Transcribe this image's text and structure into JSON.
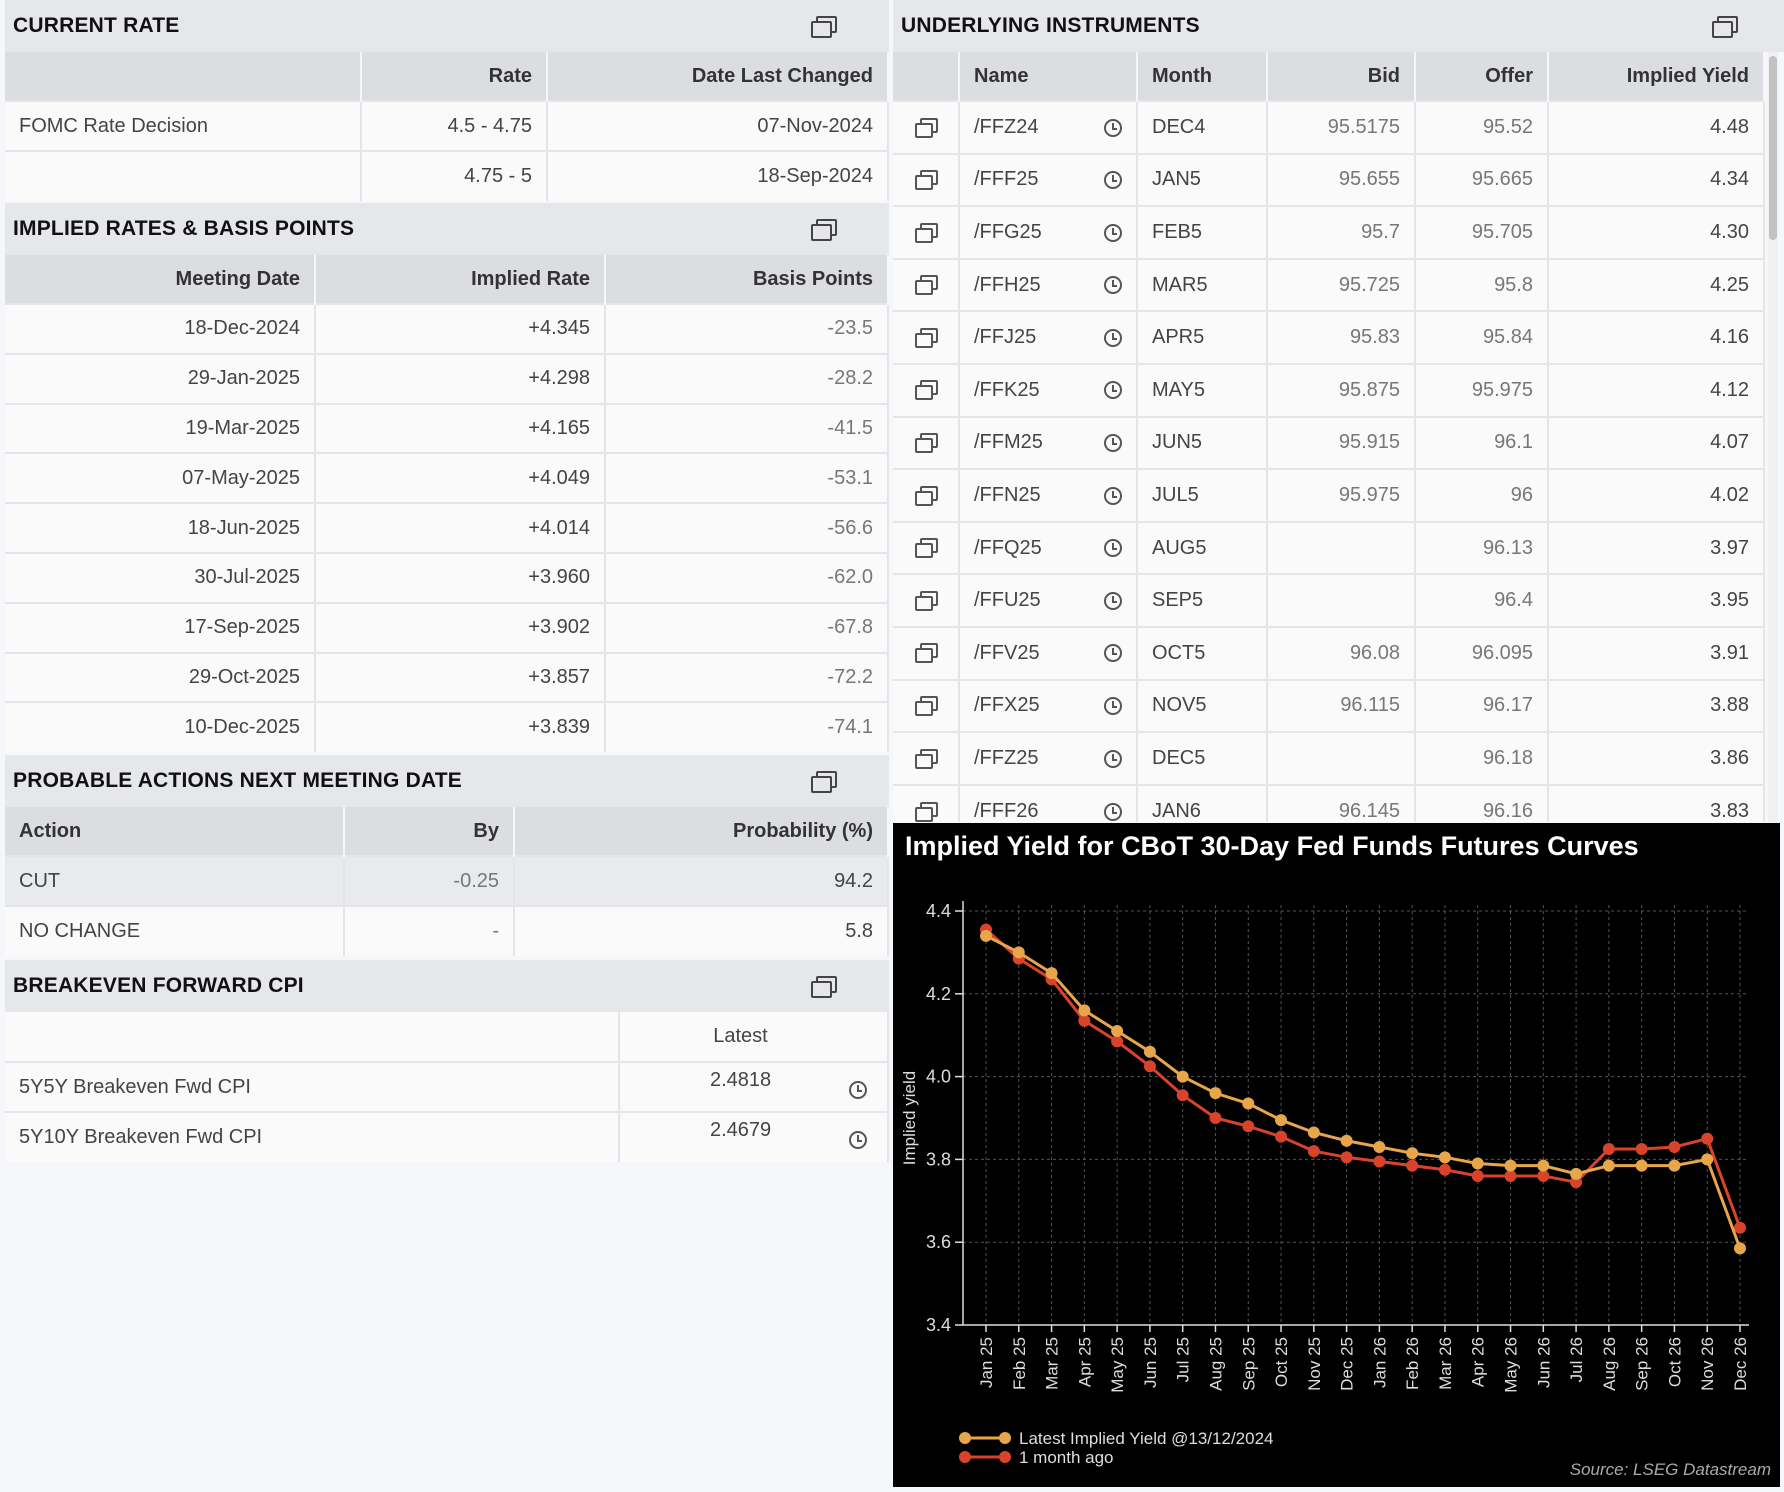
{
  "current_rate": {
    "title": "CURRENT RATE",
    "headers": [
      "",
      "Rate",
      "Date Last Changed"
    ],
    "rows": [
      [
        "FOMC Rate Decision",
        "4.5 - 4.75",
        "07-Nov-2024"
      ],
      [
        "",
        "4.75 - 5",
        "18-Sep-2024"
      ]
    ]
  },
  "implied_rates": {
    "title": "IMPLIED RATES & BASIS POINTS",
    "headers": [
      "Meeting Date",
      "Implied Rate",
      "Basis Points"
    ],
    "rows": [
      [
        "18-Dec-2024",
        "+4.345",
        "-23.5"
      ],
      [
        "29-Jan-2025",
        "+4.298",
        "-28.2"
      ],
      [
        "19-Mar-2025",
        "+4.165",
        "-41.5"
      ],
      [
        "07-May-2025",
        "+4.049",
        "-53.1"
      ],
      [
        "18-Jun-2025",
        "+4.014",
        "-56.6"
      ],
      [
        "30-Jul-2025",
        "+3.960",
        "-62.0"
      ],
      [
        "17-Sep-2025",
        "+3.902",
        "-67.8"
      ],
      [
        "29-Oct-2025",
        "+3.857",
        "-72.2"
      ],
      [
        "10-Dec-2025",
        "+3.839",
        "-74.1"
      ]
    ]
  },
  "probable_actions": {
    "title": "PROBABLE ACTIONS NEXT MEETING DATE",
    "headers": [
      "Action",
      "By",
      "Probability (%)"
    ],
    "rows": [
      [
        "CUT",
        "-0.25",
        "94.2"
      ],
      [
        "NO CHANGE",
        "-",
        "5.8"
      ]
    ]
  },
  "breakeven": {
    "title": "BREAKEVEN FORWARD CPI",
    "headers": [
      "",
      "Latest"
    ],
    "rows": [
      [
        "5Y5Y Breakeven Fwd CPI",
        "2.4818"
      ],
      [
        "5Y10Y Breakeven Fwd CPI",
        "2.4679"
      ]
    ]
  },
  "underlying": {
    "title": "UNDERLYING INSTRUMENTS",
    "headers": [
      "",
      "Name",
      "",
      "Month",
      "Bid",
      "Offer",
      "Implied Yield"
    ],
    "rows": [
      [
        "/FFZ24",
        "DEC4",
        "95.5175",
        "95.52",
        "4.48"
      ],
      [
        "/FFF25",
        "JAN5",
        "95.655",
        "95.665",
        "4.34"
      ],
      [
        "/FFG25",
        "FEB5",
        "95.7",
        "95.705",
        "4.30"
      ],
      [
        "/FFH25",
        "MAR5",
        "95.725",
        "95.8",
        "4.25"
      ],
      [
        "/FFJ25",
        "APR5",
        "95.83",
        "95.84",
        "4.16"
      ],
      [
        "/FFK25",
        "MAY5",
        "95.875",
        "95.975",
        "4.12"
      ],
      [
        "/FFM25",
        "JUN5",
        "95.915",
        "96.1",
        "4.07"
      ],
      [
        "/FFN25",
        "JUL5",
        "95.975",
        "96",
        "4.02"
      ],
      [
        "/FFQ25",
        "AUG5",
        "",
        "96.13",
        "3.97"
      ],
      [
        "/FFU25",
        "SEP5",
        "",
        "96.4",
        "3.95"
      ],
      [
        "/FFV25",
        "OCT5",
        "96.08",
        "96.095",
        "3.91"
      ],
      [
        "/FFX25",
        "NOV5",
        "96.115",
        "96.17",
        "3.88"
      ],
      [
        "/FFZ25",
        "DEC5",
        "",
        "96.18",
        "3.86"
      ],
      [
        "/FFF26",
        "JAN6",
        "96.145",
        "96.16",
        "3.83"
      ]
    ]
  },
  "chart_data": {
    "type": "line",
    "title": "Implied Yield for CBoT 30-Day Fed Funds Futures Curves",
    "ylabel": "Implied yield",
    "xlabel": "",
    "ylim": [
      3.4,
      4.4
    ],
    "yticks": [
      "3.4",
      "3.6",
      "3.8",
      "4.0",
      "4.2",
      "4.4"
    ],
    "categories": [
      "Jan 25",
      "Feb 25",
      "Mar 25",
      "Apr 25",
      "May 25",
      "Jun 25",
      "Jul 25",
      "Aug 25",
      "Sep 25",
      "Oct 25",
      "Nov 25",
      "Dec 25",
      "Jan 26",
      "Feb 26",
      "Mar 26",
      "Apr 26",
      "May 26",
      "Jun 26",
      "Jul 26",
      "Aug 26",
      "Sep 26",
      "Oct 26",
      "Nov 26",
      "Dec 26"
    ],
    "series": [
      {
        "name": "Latest Implied Yield @13/12/2024",
        "color": "#e8a64a",
        "values": [
          4.34,
          4.3,
          4.25,
          4.16,
          4.11,
          4.06,
          4.0,
          3.96,
          3.935,
          3.895,
          3.865,
          3.845,
          3.83,
          3.815,
          3.805,
          3.79,
          3.785,
          3.785,
          3.765,
          3.785,
          3.785,
          3.785,
          3.8,
          3.585
        ]
      },
      {
        "name": "1 month ago",
        "color": "#d9432b",
        "values": [
          4.355,
          4.285,
          4.235,
          4.135,
          4.085,
          4.025,
          3.955,
          3.9,
          3.88,
          3.855,
          3.82,
          3.805,
          3.795,
          3.785,
          3.775,
          3.76,
          3.76,
          3.76,
          3.745,
          3.825,
          3.825,
          3.83,
          3.85,
          3.635
        ]
      }
    ],
    "legend": "bottom-left",
    "grid": true,
    "source": "Source: LSEG Datastream"
  }
}
